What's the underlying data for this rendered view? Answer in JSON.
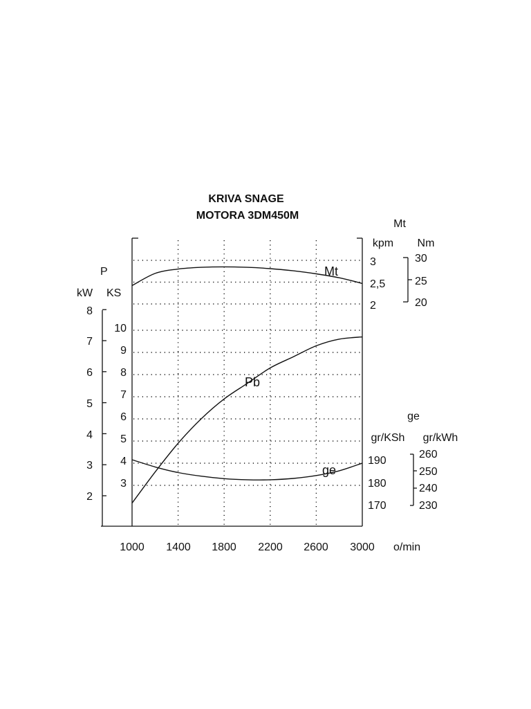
{
  "chart_data": {
    "type": "line",
    "title_line1": "KRIVA SNAGE",
    "title_line2": "MOTORA 3DM450M",
    "x": {
      "unit": "o/min",
      "ticks": [
        1000,
        1400,
        1800,
        2200,
        2600,
        3000
      ],
      "range": [
        1000,
        3000
      ]
    },
    "power_axis": {
      "symbol": "P",
      "kw_unit": "kW",
      "ks_unit": "KS",
      "kw_ticks": [
        2,
        3,
        4,
        5,
        6,
        7,
        8
      ],
      "ks_ticks": [
        3,
        4,
        5,
        6,
        7,
        8,
        9,
        10
      ]
    },
    "torque_axis": {
      "symbol": "Mt",
      "kpm_unit": "kpm",
      "nm_unit": "Nm",
      "kpm_ticks": [
        "3",
        "2,5",
        "2"
      ],
      "nm_ticks": [
        "30",
        "25",
        "20"
      ]
    },
    "consumption_axis": {
      "symbol": "ge",
      "ksh_unit": "gr/KSh",
      "kwh_unit": "gr/kWh",
      "ksh_ticks": [
        "190",
        "180",
        "170"
      ],
      "kwh_ticks": [
        "260",
        "250",
        "240",
        "230"
      ]
    },
    "series": [
      {
        "name": "Mt",
        "axis": "kpm",
        "x": [
          1000,
          1200,
          1400,
          1600,
          1800,
          2000,
          2200,
          2400,
          2600,
          2800,
          3000
        ],
        "values": [
          2.42,
          2.7,
          2.8,
          2.84,
          2.85,
          2.84,
          2.81,
          2.76,
          2.69,
          2.6,
          2.47
        ]
      },
      {
        "name": "Pb",
        "axis": "KS",
        "x": [
          1000,
          1200,
          1400,
          1600,
          1800,
          2000,
          2200,
          2400,
          2600,
          2800,
          3000
        ],
        "values": [
          2.2,
          3.6,
          4.9,
          6.0,
          6.9,
          7.6,
          8.3,
          8.8,
          9.3,
          9.6,
          9.7
        ]
      },
      {
        "name": "ge",
        "axis": "gr/KSh",
        "x": [
          1000,
          1200,
          1400,
          1600,
          1800,
          2000,
          2200,
          2400,
          2600,
          2800,
          3000
        ],
        "values": [
          190.0,
          186.8,
          184.3,
          182.7,
          181.6,
          181.1,
          181.1,
          181.7,
          183.0,
          185.1,
          188.5
        ]
      }
    ],
    "grid": true
  }
}
